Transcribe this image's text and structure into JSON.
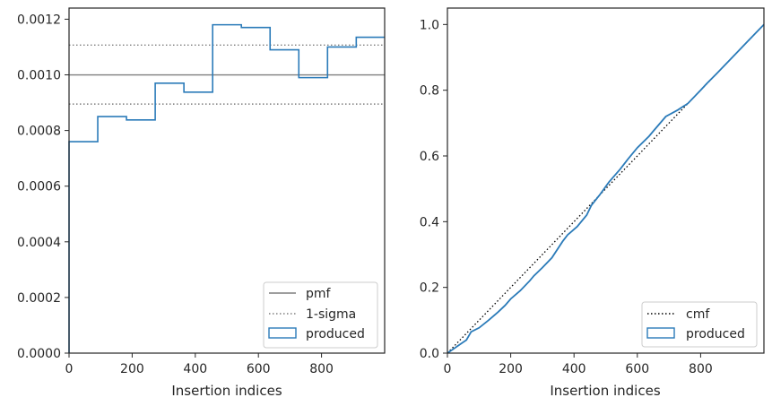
{
  "chart_data": [
    {
      "type": "histogram",
      "xlabel": "Insertion indices",
      "ylabel": "",
      "xlim": [
        0,
        1000
      ],
      "ylim": [
        0,
        0.00124
      ],
      "xticks": [
        "0",
        "200",
        "400",
        "600",
        "800"
      ],
      "yticks": [
        "0.0000",
        "0.0002",
        "0.0004",
        "0.0006",
        "0.0008",
        "0.0010",
        "0.0012"
      ],
      "bin_edges": [
        0,
        91,
        182,
        273,
        364,
        455,
        546,
        637,
        728,
        819,
        910,
        1000
      ],
      "values": [
        0.00076,
        0.00085,
        0.000838,
        0.00097,
        0.000938,
        0.00118,
        0.00117,
        0.00109,
        0.00099,
        0.0011,
        0.001135
      ],
      "reference_lines": [
        {
          "name": "pmf",
          "y": 0.001,
          "style": "solid",
          "color": "#7f7f7f"
        },
        {
          "name": "1-sigma",
          "y": 0.001107,
          "style": "dotted",
          "color": "#7f7f7f"
        },
        {
          "name": "1-sigma",
          "y": 0.000895,
          "style": "dotted",
          "color": "#7f7f7f"
        }
      ],
      "series": [
        {
          "name": "produced",
          "color": "#2b7bb9"
        }
      ],
      "legend": {
        "position": "bottom-right",
        "entries": [
          "pmf",
          "1-sigma",
          "produced"
        ]
      }
    },
    {
      "type": "line",
      "xlabel": "Insertion indices",
      "ylabel": "",
      "xlim": [
        0,
        1000
      ],
      "ylim": [
        0,
        1.05
      ],
      "xticks": [
        "0",
        "200",
        "400",
        "600",
        "800"
      ],
      "yticks": [
        "0.0",
        "0.2",
        "0.4",
        "0.6",
        "0.8",
        "1.0"
      ],
      "series": [
        {
          "name": "cmf",
          "style": "dotted",
          "color": "#000000",
          "x": [
            0,
            1000
          ],
          "y": [
            0,
            1
          ]
        },
        {
          "name": "produced",
          "style": "solid",
          "color": "#2b7bb9",
          "x": [
            0,
            30,
            60,
            75,
            100,
            130,
            160,
            182,
            200,
            230,
            260,
            273,
            300,
            330,
            364,
            380,
            410,
            440,
            455,
            480,
            510,
            546,
            570,
            600,
            637,
            650,
            690,
            728,
            760,
            800,
            819,
            850,
            880,
            910,
            950,
            1000
          ],
          "y": [
            0,
            0.02,
            0.04,
            0.065,
            0.077,
            0.1,
            0.125,
            0.145,
            0.165,
            0.19,
            0.22,
            0.235,
            0.26,
            0.29,
            0.34,
            0.36,
            0.385,
            0.42,
            0.45,
            0.48,
            0.52,
            0.56,
            0.59,
            0.625,
            0.66,
            0.675,
            0.72,
            0.74,
            0.76,
            0.8,
            0.82,
            0.85,
            0.88,
            0.91,
            0.95,
            1.0
          ]
        }
      ],
      "legend": {
        "position": "bottom-right",
        "entries": [
          "cmf",
          "produced"
        ]
      }
    }
  ]
}
